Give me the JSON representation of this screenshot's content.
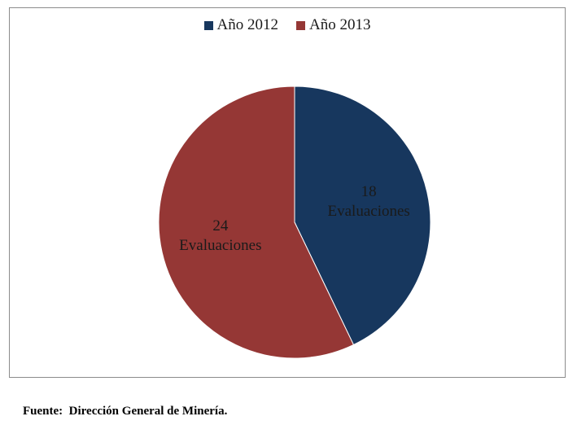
{
  "chart_data": {
    "type": "pie",
    "categories": [
      "Año 2012",
      "Año 2013"
    ],
    "values": [
      18,
      24
    ],
    "data_labels": [
      {
        "value": "18",
        "text": "Evaluaciones"
      },
      {
        "value": "24",
        "text": "Evaluaciones"
      }
    ],
    "colors": [
      "#17375e",
      "#953735"
    ],
    "legend_position": "top"
  },
  "source_note": "Fuente:  Dirección General de Minería."
}
